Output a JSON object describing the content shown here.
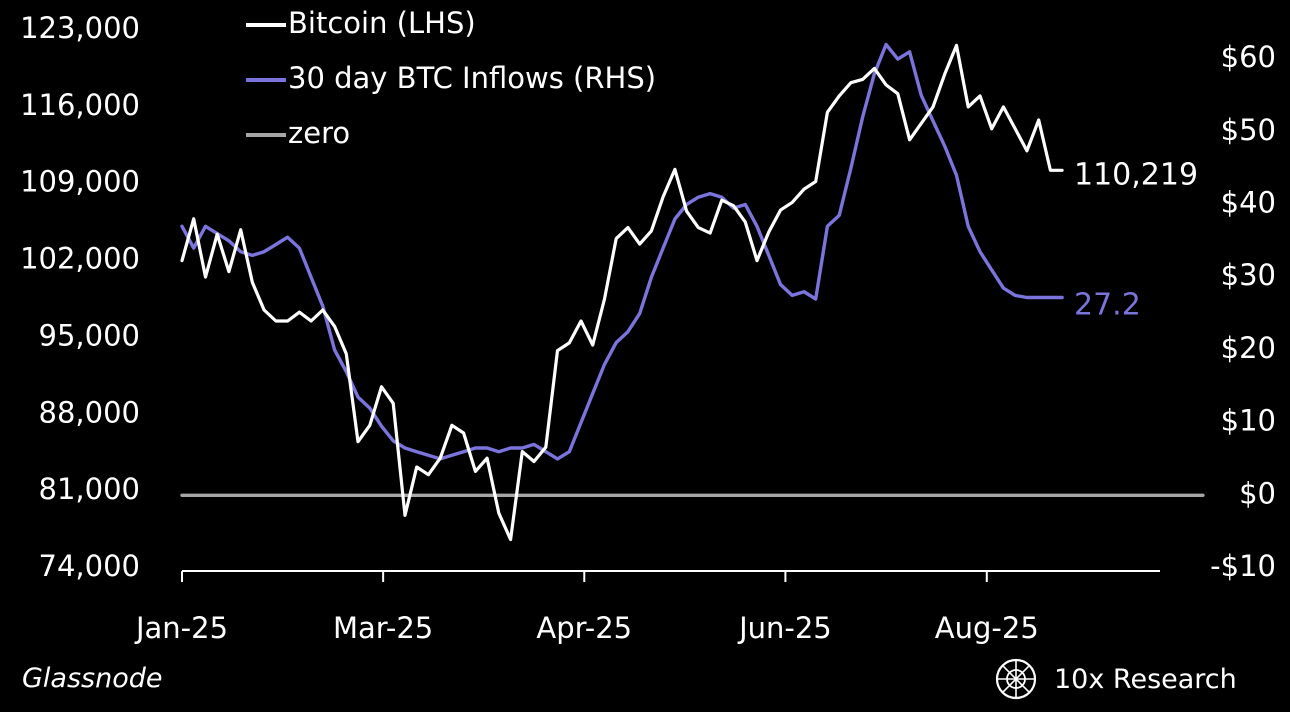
{
  "chart_data": {
    "type": "line",
    "colors": {
      "bitcoin": "#ffffff",
      "inflows": "#7b74dc",
      "zero": "#a6a6a6",
      "background": "#000000"
    },
    "legend": {
      "placement": "top-left",
      "entries": [
        "Bitcoin (LHS)",
        "30 day BTC Inflows (RHS)",
        "zero"
      ]
    },
    "x_axis": {
      "ticks": [
        "Jan-25",
        "Mar-25",
        "Apr-25",
        "Jun-25",
        "Aug-25"
      ],
      "tick_weeks": [
        0,
        8.57,
        17.14,
        25.71,
        34.29
      ],
      "range_weeks": [
        0,
        42
      ]
    },
    "y_left": {
      "range": [
        74000,
        123000
      ],
      "ticks": [
        "123,000",
        "116,000",
        "109,000",
        "102,000",
        "95,000",
        "88,000",
        "81,000",
        "74,000"
      ],
      "tick_values": [
        123000,
        116000,
        109000,
        102000,
        95000,
        88000,
        81000,
        74000
      ]
    },
    "y_right": {
      "range": [
        -10,
        64
      ],
      "ticks": [
        "$60",
        "$50",
        "$40",
        "$30",
        "$20",
        "$10",
        "$0",
        "-$10"
      ],
      "tick_values": [
        60,
        50,
        40,
        30,
        20,
        10,
        0,
        -10
      ]
    },
    "series": [
      {
        "name": "Bitcoin (LHS)",
        "axis": "left",
        "x": [
          0,
          0.5,
          1,
          1.5,
          2,
          2.5,
          3,
          3.5,
          4,
          4.5,
          5,
          5.5,
          6,
          6.5,
          7,
          7.5,
          8,
          8.5,
          9,
          9.5,
          10,
          10.5,
          11,
          11.5,
          12,
          12.5,
          13,
          13.5,
          14,
          14.5,
          15,
          15.5,
          16,
          16.5,
          17,
          17.5,
          18,
          18.5,
          19,
          19.5,
          20,
          20.5,
          21,
          21.5,
          22,
          22.5,
          23,
          23.5,
          24,
          24.5,
          25,
          25.5,
          26,
          26.5,
          27,
          27.5,
          28,
          28.5,
          29,
          29.5,
          30,
          30.5,
          31,
          31.5,
          32,
          32.5,
          33,
          33.5,
          34,
          34.5,
          35,
          35.5,
          36,
          36.5,
          37,
          37.5
        ],
        "values": [
          102000,
          105800,
          100500,
          104400,
          101000,
          104800,
          100000,
          97500,
          96500,
          96500,
          97300,
          96500,
          97500,
          96000,
          93500,
          85500,
          87000,
          90500,
          89000,
          78800,
          83200,
          82500,
          84000,
          87000,
          86300,
          82800,
          84000,
          79000,
          76600,
          84600,
          83700,
          85000,
          93800,
          94500,
          96500,
          94300,
          98500,
          104000,
          105000,
          103500,
          104700,
          107800,
          110300,
          106500,
          105000,
          104500,
          107500,
          107000,
          105500,
          102000,
          104600,
          106600,
          107300,
          108500,
          109200,
          115500,
          117000,
          118200,
          118500,
          119500,
          118000,
          117200,
          113000,
          114500,
          116000,
          119000,
          121600,
          116000,
          117000,
          114000,
          116000,
          114000,
          112000,
          114800,
          110219,
          110219
        ],
        "end_label": "110,219"
      },
      {
        "name": "30 day BTC Inflows (RHS)",
        "axis": "right",
        "x": [
          0,
          0.5,
          1,
          1.5,
          2,
          2.5,
          3,
          3.5,
          4,
          4.5,
          5,
          5.5,
          6,
          6.5,
          7,
          7.5,
          8,
          8.5,
          9,
          9.5,
          10,
          10.5,
          11,
          11.5,
          12,
          12.5,
          13,
          13.5,
          14,
          14.5,
          15,
          15.5,
          16,
          16.5,
          17,
          17.5,
          18,
          18.5,
          19,
          19.5,
          20,
          20.5,
          21,
          21.5,
          22,
          22.5,
          23,
          23.5,
          24,
          24.5,
          25,
          25.5,
          26,
          26.5,
          27,
          27.5,
          28,
          28.5,
          29,
          29.5,
          30,
          30.5,
          31,
          31.5,
          32,
          32.5,
          33,
          33.5,
          34,
          34.5,
          35,
          35.5,
          36,
          36.5,
          37,
          37.5
        ],
        "values": [
          37,
          34,
          37,
          36,
          35,
          33.5,
          33,
          33.5,
          34.5,
          35.5,
          34,
          30,
          26,
          20,
          17,
          13.5,
          12,
          9.5,
          7.5,
          6.5,
          6,
          5.5,
          5,
          5.5,
          6,
          6.5,
          6.5,
          6,
          6.5,
          6.5,
          7,
          6,
          5,
          6,
          10,
          14,
          18,
          21,
          22.5,
          25,
          30,
          34,
          38,
          40,
          41,
          41.5,
          41,
          39.5,
          40,
          37,
          33,
          29,
          27.5,
          28,
          27,
          37,
          38.5,
          45,
          52,
          58,
          62,
          60,
          61,
          55,
          51.5,
          48,
          44,
          37,
          33.5,
          31,
          28.5,
          27.5,
          27.2,
          27.2,
          27.2,
          27.2
        ],
        "end_label": "27.2"
      },
      {
        "name": "zero",
        "axis": "right",
        "x": [
          0,
          43.5
        ],
        "values": [
          0,
          0
        ]
      }
    ]
  },
  "footer": {
    "source": "Glassnode",
    "brand": "10x Research"
  }
}
